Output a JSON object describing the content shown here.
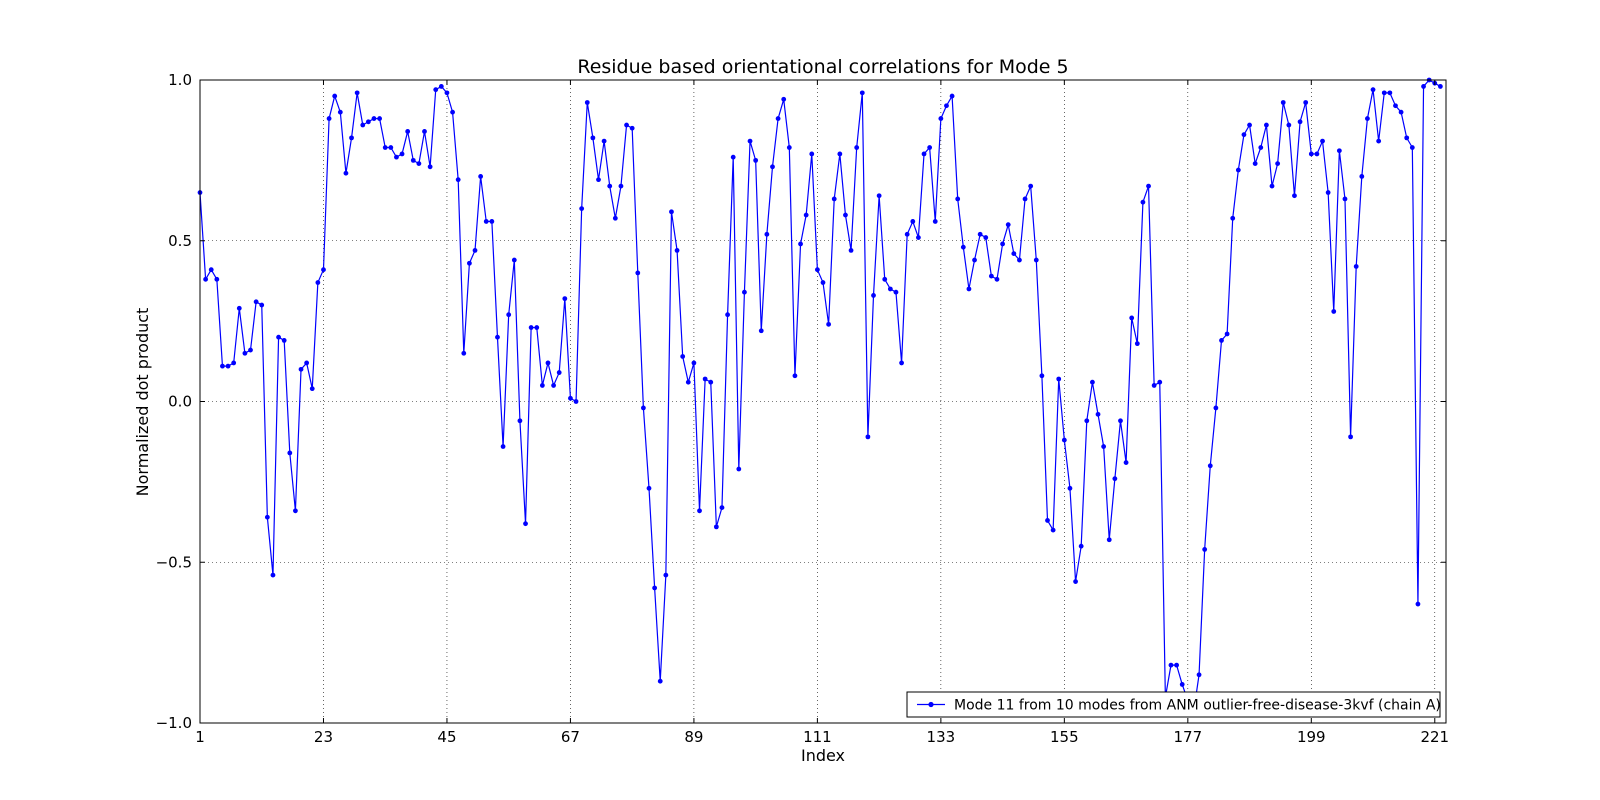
{
  "chart_data": {
    "type": "line",
    "title": "Residue based orientational correlations for Mode 5",
    "xlabel": "Index",
    "ylabel": "Normalized dot product",
    "xlim": [
      1,
      223
    ],
    "ylim": [
      -1.0,
      1.0
    ],
    "xticks": [
      1,
      23,
      45,
      67,
      89,
      111,
      133,
      155,
      177,
      199,
      221
    ],
    "yticks": [
      -1.0,
      -0.5,
      0.0,
      0.5,
      1.0
    ],
    "ytick_labels": [
      "−1.0",
      "−0.5",
      "0.0",
      "0.5",
      "1.0"
    ],
    "grid": true,
    "legend_position": "lower-right",
    "colors": {
      "series": "#0000ff"
    },
    "series": [
      {
        "name": "Mode 11 from 10 modes from ANM outlier-free-disease-3kvf (chain A)",
        "marker": "dot",
        "values": [
          0.65,
          0.38,
          0.41,
          0.38,
          0.11,
          0.11,
          0.12,
          0.29,
          0.15,
          0.16,
          0.31,
          0.3,
          -0.36,
          -0.54,
          0.2,
          0.19,
          -0.16,
          -0.34,
          0.1,
          0.12,
          0.04,
          0.37,
          0.41,
          0.88,
          0.95,
          0.9,
          0.71,
          0.82,
          0.96,
          0.86,
          0.87,
          0.88,
          0.88,
          0.79,
          0.79,
          0.76,
          0.77,
          0.84,
          0.75,
          0.74,
          0.84,
          0.73,
          0.97,
          0.98,
          0.96,
          0.9,
          0.69,
          0.15,
          0.43,
          0.47,
          0.7,
          0.56,
          0.56,
          0.2,
          -0.14,
          0.27,
          0.44,
          -0.06,
          -0.38,
          0.23,
          0.23,
          0.05,
          0.12,
          0.05,
          0.09,
          0.32,
          0.01,
          0.0,
          0.6,
          0.93,
          0.82,
          0.69,
          0.81,
          0.67,
          0.57,
          0.67,
          0.86,
          0.85,
          0.4,
          -0.02,
          -0.27,
          -0.58,
          -0.87,
          -0.54,
          0.59,
          0.47,
          0.14,
          0.06,
          0.12,
          -0.34,
          0.07,
          0.06,
          -0.39,
          -0.33,
          0.27,
          0.76,
          -0.21,
          0.34,
          0.81,
          0.75,
          0.22,
          0.52,
          0.73,
          0.88,
          0.94,
          0.79,
          0.08,
          0.49,
          0.58,
          0.77,
          0.41,
          0.37,
          0.24,
          0.63,
          0.77,
          0.58,
          0.47,
          0.79,
          0.96,
          -0.11,
          0.33,
          0.64,
          0.38,
          0.35,
          0.34,
          0.12,
          0.52,
          0.56,
          0.51,
          0.77,
          0.79,
          0.56,
          0.88,
          0.92,
          0.95,
          0.63,
          0.48,
          0.35,
          0.44,
          0.52,
          0.51,
          0.39,
          0.38,
          0.49,
          0.55,
          0.46,
          0.44,
          0.63,
          0.67,
          0.44,
          0.08,
          -0.37,
          -0.4,
          0.07,
          -0.12,
          -0.27,
          -0.56,
          -0.45,
          -0.06,
          0.06,
          -0.04,
          -0.14,
          -0.43,
          -0.24,
          -0.06,
          -0.19,
          0.26,
          0.18,
          0.62,
          0.67,
          0.05,
          0.06,
          -0.92,
          -0.82,
          -0.82,
          -0.88,
          -0.93,
          -0.97,
          -0.85,
          -0.46,
          -0.2,
          -0.02,
          0.19,
          0.21,
          0.57,
          0.72,
          0.83,
          0.86,
          0.74,
          0.79,
          0.86,
          0.67,
          0.74,
          0.93,
          0.86,
          0.64,
          0.87,
          0.93,
          0.77,
          0.77,
          0.81,
          0.65,
          0.28,
          0.78,
          0.63,
          -0.11,
          0.42,
          0.7,
          0.88,
          0.97,
          0.81,
          0.96,
          0.96,
          0.92,
          0.9,
          0.82,
          0.79,
          -0.63,
          0.98,
          1.0,
          0.99,
          0.98
        ]
      }
    ]
  }
}
